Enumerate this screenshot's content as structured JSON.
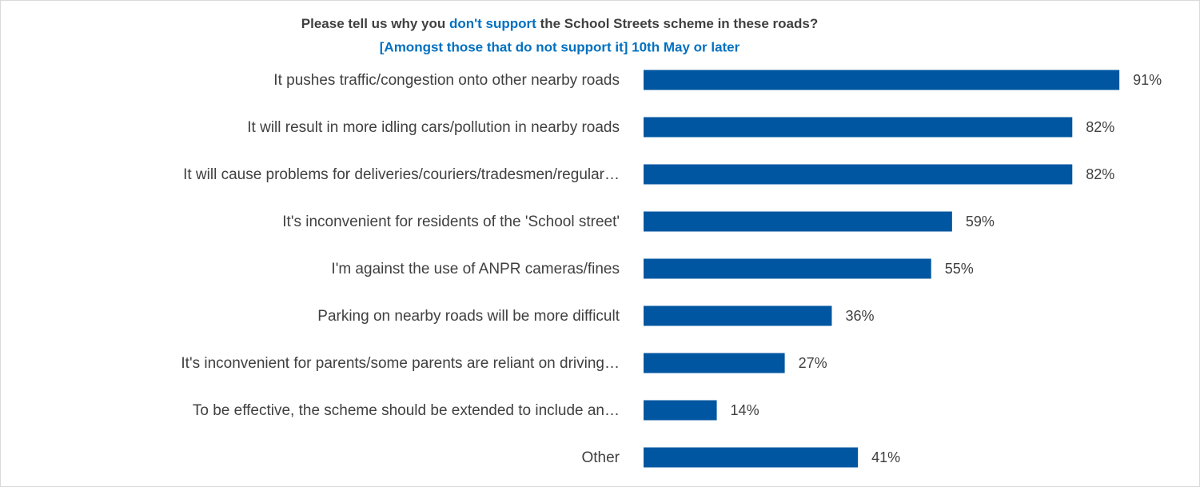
{
  "chart_data": {
    "type": "bar",
    "orientation": "horizontal",
    "title_parts": [
      {
        "text": "Please tell us why you",
        "color": "#404040"
      },
      {
        "text": "don't support",
        "color": "#0070c0"
      },
      {
        "text": "the School Streets scheme in these roads?",
        "color": "#404040"
      }
    ],
    "subtitle": "[Amongst those that do not support it] 10th May or later",
    "subtitle_color": "#0070c0",
    "categories": [
      "It pushes traffic/congestion onto other nearby roads",
      "It will result in more idling cars/pollution in nearby roads",
      "It will cause problems for deliveries/couriers/tradesmen/regular…",
      "It's inconvenient for residents of the 'School street'",
      "I'm against the use of ANPR cameras/fines",
      "Parking on nearby roads will be more difficult",
      "It's inconvenient for parents/some parents are reliant on driving…",
      "To be effective, the scheme should be extended to include an…",
      "Other"
    ],
    "values": [
      91,
      82,
      82,
      59,
      55,
      36,
      27,
      14,
      41
    ],
    "value_labels": [
      "91%",
      "82%",
      "82%",
      "59%",
      "55%",
      "36%",
      "27%",
      "14%",
      "41%"
    ],
    "color": "#0056a0"
  }
}
